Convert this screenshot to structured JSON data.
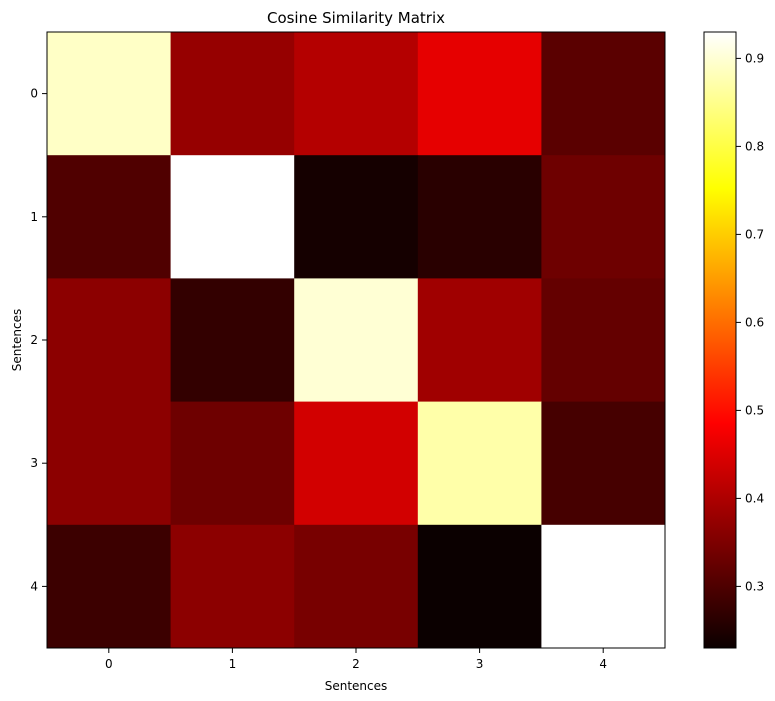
{
  "chart_data": {
    "type": "heatmap",
    "title": "Cosine Similarity Matrix",
    "xlabel": "Sentences",
    "ylabel": "Sentences",
    "x_categories": [
      "0",
      "1",
      "2",
      "3",
      "4"
    ],
    "y_categories": [
      "0",
      "1",
      "2",
      "3",
      "4"
    ],
    "values": [
      [
        0.89,
        0.37,
        0.4,
        0.45,
        0.31
      ],
      [
        0.3,
        0.93,
        0.24,
        0.26,
        0.33
      ],
      [
        0.36,
        0.27,
        0.9,
        0.38,
        0.32
      ],
      [
        0.36,
        0.33,
        0.43,
        0.87,
        0.29
      ],
      [
        0.28,
        0.36,
        0.34,
        0.23,
        0.93
      ]
    ],
    "colormap": "hot",
    "colorbar": {
      "range": [
        0.23,
        0.93
      ],
      "ticks": [
        0.3,
        0.4,
        0.5,
        0.6,
        0.7,
        0.8,
        0.9
      ],
      "tick_labels": [
        "0.3",
        "0.4",
        "0.5",
        "0.6",
        "0.7",
        "0.8",
        "0.9"
      ]
    },
    "grid": false
  }
}
